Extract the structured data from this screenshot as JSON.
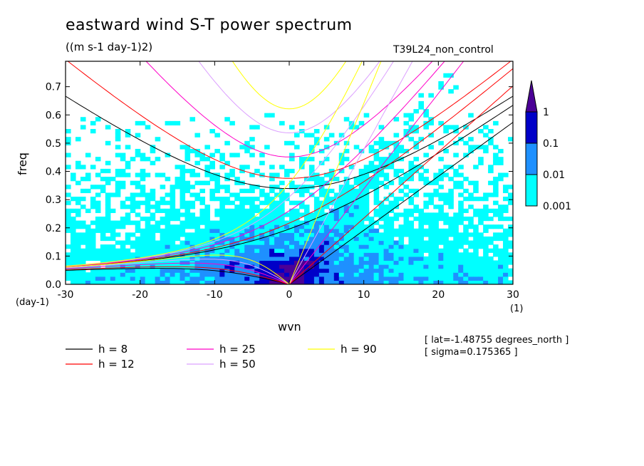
{
  "title": "eastward wind S-T power spectrum",
  "units": "((m s-1 day-1)2)",
  "run_label": "T39L24_non_control",
  "info": {
    "lat": "[ lat=-1.48755 degrees_north ]",
    "sigma": "[ sigma=0.175365 ]"
  },
  "chart_data": {
    "type": "heatmap",
    "title": "eastward wind S-T power spectrum",
    "subtitle": "((m s-1 day-1)2)",
    "xlabel": "wvn",
    "ylabel": "freq",
    "x_unit": "(1)",
    "y_unit": "(day-1)",
    "xlim": [
      -30,
      30
    ],
    "ylim": [
      0,
      0.79
    ],
    "xticks": [
      -30,
      -20,
      -10,
      0,
      10,
      20,
      30
    ],
    "xtick_labels": [
      "-30",
      "-20",
      "-10",
      "0",
      "10",
      "20",
      "30"
    ],
    "yticks": [
      0,
      0.1,
      0.2,
      0.3,
      0.4,
      0.5,
      0.6,
      0.7
    ],
    "ytick_labels": [
      "0.0",
      "0.1",
      "0.2",
      "0.3",
      "0.4",
      "0.5",
      "0.6",
      "0.7"
    ],
    "colorbar": {
      "levels": [
        0.001,
        0.01,
        0.1,
        1
      ],
      "labels": [
        "0.001",
        "0.01",
        "0.1",
        "1"
      ],
      "colors": [
        "#00ffff",
        "#1e90ff",
        "#0000c8",
        "#4b0096"
      ],
      "below_color": "#ffffff"
    },
    "dispersion_curves": [
      {
        "label": "h = 8",
        "h": 8,
        "color": "#000000"
      },
      {
        "label": "h = 12",
        "h": 12,
        "color": "#ff0000"
      },
      {
        "label": "h = 25",
        "h": 25,
        "color": "#ff00c8"
      },
      {
        "label": "h = 50",
        "h": 50,
        "color": "#dca0ff"
      },
      {
        "label": "h = 90",
        "h": 90,
        "color": "#ffff00"
      }
    ]
  }
}
